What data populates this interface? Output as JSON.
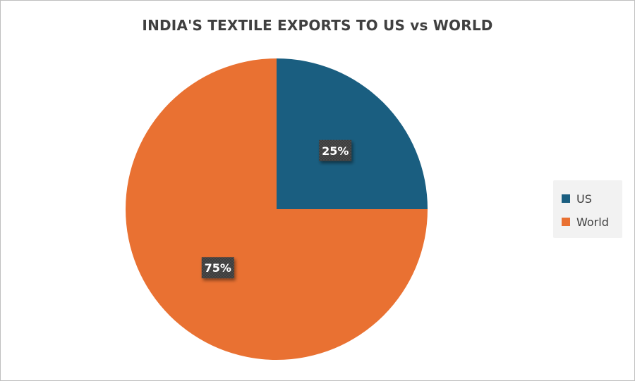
{
  "chart_data": {
    "type": "pie",
    "title": "INDIA'S TEXTILE EXPORTS TO US vs WORLD",
    "series": [
      {
        "name": "US",
        "value": 25,
        "label": "25%",
        "color": "#1a5e80"
      },
      {
        "name": "World",
        "value": 75,
        "label": "75%",
        "color": "#e97132"
      }
    ],
    "legend_position": "right",
    "data_label_style": "dark-box"
  }
}
